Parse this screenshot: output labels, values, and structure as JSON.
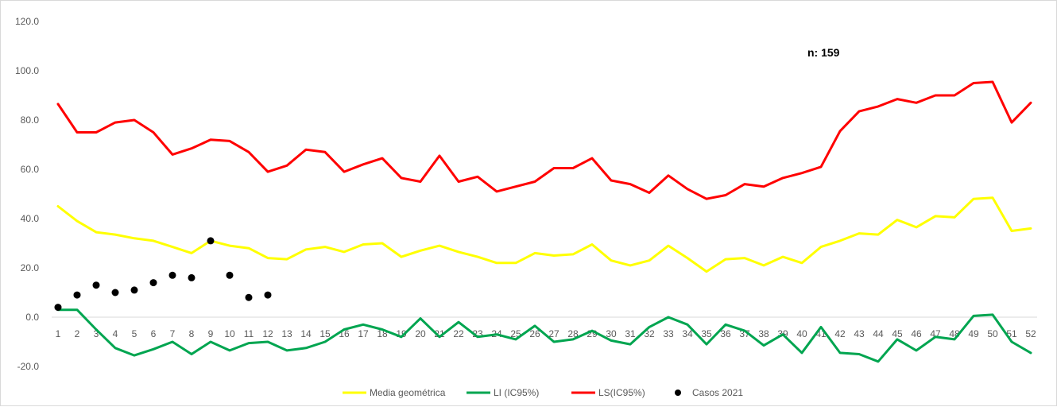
{
  "chart_data": {
    "type": "line",
    "title": "",
    "xlabel": "",
    "ylabel": "",
    "ylim": [
      -20,
      120
    ],
    "yticks": [
      -20,
      0,
      20,
      40,
      60,
      80,
      100,
      120
    ],
    "ytick_labels": [
      "-20.0",
      "0.0",
      "20.0",
      "40.0",
      "60.0",
      "80.0",
      "100.0",
      "120.0"
    ],
    "x": [
      1,
      2,
      3,
      4,
      5,
      6,
      7,
      8,
      9,
      10,
      11,
      12,
      13,
      14,
      15,
      16,
      17,
      18,
      19,
      20,
      21,
      22,
      23,
      24,
      25,
      26,
      27,
      28,
      29,
      30,
      31,
      32,
      33,
      34,
      35,
      36,
      37,
      38,
      39,
      40,
      41,
      42,
      43,
      44,
      45,
      46,
      47,
      48,
      49,
      50,
      51,
      52
    ],
    "xtick_labels": [
      "1",
      "2",
      "3",
      "4",
      "5",
      "6",
      "7",
      "8",
      "9",
      "10",
      "11",
      "12",
      "13",
      "14",
      "15",
      "16",
      "17",
      "18",
      "19",
      "20",
      "21",
      "22",
      "23",
      "24",
      "25",
      "26",
      "27",
      "28",
      "29",
      "30",
      "31",
      "32",
      "33",
      "34",
      "35",
      "36",
      "37",
      "38",
      "39",
      "40",
      "41",
      "42",
      "43",
      "44",
      "45",
      "46",
      "47",
      "48",
      "49",
      "50",
      "51",
      "52"
    ],
    "grid": false,
    "legend_position": "bottom",
    "annotation": "n: 159",
    "series": [
      {
        "name": "Media geométrica",
        "kind": "line",
        "color": "#ffff00",
        "values": [
          45,
          39,
          34.5,
          33.5,
          32,
          31,
          28.5,
          26,
          31,
          29,
          28,
          24,
          23.5,
          27.5,
          28.5,
          26.5,
          29.5,
          30,
          24.5,
          27,
          29,
          26.5,
          24.5,
          22,
          22,
          26,
          25,
          25.5,
          29.5,
          23,
          21,
          23,
          29,
          24,
          18.5,
          23.5,
          24,
          21,
          24.5,
          22,
          28.5,
          31,
          34,
          33.5,
          39.5,
          36.5,
          41,
          40.5,
          48,
          48.5,
          35,
          36
        ]
      },
      {
        "name": "LI (IC95%)",
        "kind": "line",
        "color": "#00a550",
        "values": [
          3,
          3,
          -5,
          -12.5,
          -15.5,
          -13,
          -10,
          -15,
          -10,
          -13.5,
          -10.5,
          -10,
          -13.5,
          -12.5,
          -10,
          -5,
          -3,
          -5,
          -8,
          -0.5,
          -8,
          -2,
          -8,
          -7,
          -9,
          -3.5,
          -10,
          -9,
          -5.5,
          -9.5,
          -11,
          -4,
          0,
          -3,
          -11,
          -3,
          -5.5,
          -11.5,
          -7,
          -14.5,
          -4,
          -14.5,
          -15,
          -18,
          -9,
          -13.5,
          -8,
          -9,
          0.5,
          1,
          -10,
          -14.5
        ]
      },
      {
        "name": "LS(IC95%)",
        "kind": "line",
        "color": "#ff0000",
        "values": [
          86.5,
          75,
          75,
          79,
          80,
          75,
          66,
          68.5,
          72,
          71.5,
          67,
          59,
          61.5,
          68,
          67,
          59,
          62,
          64.5,
          56.5,
          55,
          65.5,
          55,
          57,
          51,
          53,
          55,
          60.5,
          60.5,
          64.5,
          55.5,
          54,
          50.5,
          57.5,
          52,
          48,
          49.5,
          54,
          53,
          56.5,
          58.5,
          61,
          75.5,
          83.5,
          85.5,
          88.5,
          87,
          90,
          90,
          95,
          95.5,
          79,
          87
        ]
      },
      {
        "name": "Casos 2021",
        "kind": "scatter",
        "color": "#000000",
        "x": [
          1,
          2,
          3,
          4,
          5,
          6,
          7,
          8,
          9,
          10,
          11,
          12
        ],
        "values": [
          4,
          9,
          13,
          10,
          11,
          14,
          17,
          16,
          31,
          17,
          8,
          9
        ]
      }
    ]
  }
}
